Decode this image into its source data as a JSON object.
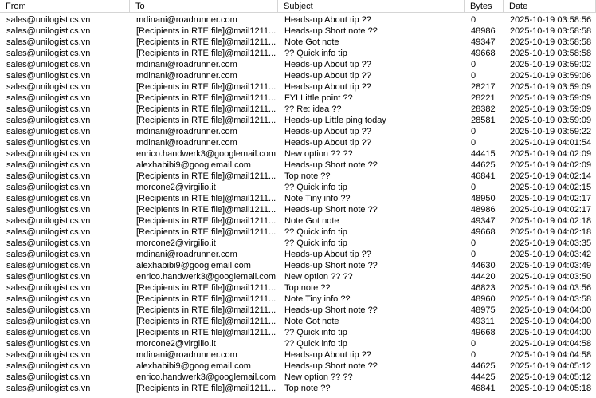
{
  "table": {
    "columns": [
      "From",
      "To",
      "Subject",
      "Bytes",
      "Date"
    ],
    "rows": [
      [
        "sales@unilogistics.vn",
        "mdinani@roadrunner.com",
        "Heads-up About tip ??",
        0,
        "2025-10-19 03:58:56"
      ],
      [
        "sales@unilogistics.vn",
        "[Recipients in RTE file]@mail1211...",
        "Heads-up Short note ??",
        48986,
        "2025-10-19 03:58:58"
      ],
      [
        "sales@unilogistics.vn",
        "[Recipients in RTE file]@mail1211...",
        "Note Got note",
        49347,
        "2025-10-19 03:58:58"
      ],
      [
        "sales@unilogistics.vn",
        "[Recipients in RTE file]@mail1211...",
        "?? Quick info tip",
        49668,
        "2025-10-19 03:58:58"
      ],
      [
        "sales@unilogistics.vn",
        "mdinani@roadrunner.com",
        "Heads-up About tip ??",
        0,
        "2025-10-19 03:59:02"
      ],
      [
        "sales@unilogistics.vn",
        "mdinani@roadrunner.com",
        "Heads-up About tip ??",
        0,
        "2025-10-19 03:59:06"
      ],
      [
        "sales@unilogistics.vn",
        "[Recipients in RTE file]@mail1211...",
        "Heads-up About tip ??",
        28217,
        "2025-10-19 03:59:09"
      ],
      [
        "sales@unilogistics.vn",
        "[Recipients in RTE file]@mail1211...",
        "FYI Little point ??",
        28221,
        "2025-10-19 03:59:09"
      ],
      [
        "sales@unilogistics.vn",
        "[Recipients in RTE file]@mail1211...",
        "?? Re: idea ??",
        28382,
        "2025-10-19 03:59:09"
      ],
      [
        "sales@unilogistics.vn",
        "[Recipients in RTE file]@mail1211...",
        "Heads-up Little ping today",
        28581,
        "2025-10-19 03:59:09"
      ],
      [
        "sales@unilogistics.vn",
        "mdinani@roadrunner.com",
        "Heads-up About tip ??",
        0,
        "2025-10-19 03:59:22"
      ],
      [
        "sales@unilogistics.vn",
        "mdinani@roadrunner.com",
        "Heads-up About tip ??",
        0,
        "2025-10-19 04:01:54"
      ],
      [
        "sales@unilogistics.vn",
        "enrico.handwerk3@googlemail.com",
        "New option ?? ??",
        44415,
        "2025-10-19 04:02:09"
      ],
      [
        "sales@unilogistics.vn",
        "alexhabibi9@googlemail.com",
        "Heads-up Short note ??",
        44625,
        "2025-10-19 04:02:09"
      ],
      [
        "sales@unilogistics.vn",
        "[Recipients in RTE file]@mail1211...",
        "Top note ??",
        46841,
        "2025-10-19 04:02:14"
      ],
      [
        "sales@unilogistics.vn",
        "morcone2@virgilio.it",
        "?? Quick info tip",
        0,
        "2025-10-19 04:02:15"
      ],
      [
        "sales@unilogistics.vn",
        "[Recipients in RTE file]@mail1211...",
        "Note Tiny info ??",
        48950,
        "2025-10-19 04:02:17"
      ],
      [
        "sales@unilogistics.vn",
        "[Recipients in RTE file]@mail1211...",
        "Heads-up Short note ??",
        48986,
        "2025-10-19 04:02:17"
      ],
      [
        "sales@unilogistics.vn",
        "[Recipients in RTE file]@mail1211...",
        "Note Got note",
        49347,
        "2025-10-19 04:02:18"
      ],
      [
        "sales@unilogistics.vn",
        "[Recipients in RTE file]@mail1211...",
        "?? Quick info tip",
        49668,
        "2025-10-19 04:02:18"
      ],
      [
        "sales@unilogistics.vn",
        "morcone2@virgilio.it",
        "?? Quick info tip",
        0,
        "2025-10-19 04:03:35"
      ],
      [
        "sales@unilogistics.vn",
        "mdinani@roadrunner.com",
        "Heads-up About tip ??",
        0,
        "2025-10-19 04:03:42"
      ],
      [
        "sales@unilogistics.vn",
        "alexhabibi9@googlemail.com",
        "Heads-up Short note ??",
        44630,
        "2025-10-19 04:03:49"
      ],
      [
        "sales@unilogistics.vn",
        "enrico.handwerk3@googlemail.com",
        "New option ?? ??",
        44420,
        "2025-10-19 04:03:50"
      ],
      [
        "sales@unilogistics.vn",
        "[Recipients in RTE file]@mail1211...",
        "Top note ??",
        46823,
        "2025-10-19 04:03:56"
      ],
      [
        "sales@unilogistics.vn",
        "[Recipients in RTE file]@mail1211...",
        "Note Tiny info ??",
        48960,
        "2025-10-19 04:03:58"
      ],
      [
        "sales@unilogistics.vn",
        "[Recipients in RTE file]@mail1211...",
        "Heads-up Short note ??",
        48975,
        "2025-10-19 04:04:00"
      ],
      [
        "sales@unilogistics.vn",
        "[Recipients in RTE file]@mail1211...",
        "Note Got note",
        49311,
        "2025-10-19 04:04:00"
      ],
      [
        "sales@unilogistics.vn",
        "[Recipients in RTE file]@mail1211...",
        "?? Quick info tip",
        49668,
        "2025-10-19 04:04:00"
      ],
      [
        "sales@unilogistics.vn",
        "morcone2@virgilio.it",
        "?? Quick info tip",
        0,
        "2025-10-19 04:04:58"
      ],
      [
        "sales@unilogistics.vn",
        "mdinani@roadrunner.com",
        "Heads-up About tip ??",
        0,
        "2025-10-19 04:04:58"
      ],
      [
        "sales@unilogistics.vn",
        "alexhabibi9@googlemail.com",
        "Heads-up Short note ??",
        44625,
        "2025-10-19 04:05:12"
      ],
      [
        "sales@unilogistics.vn",
        "enrico.handwerk3@googlemail.com",
        "New option ?? ??",
        44425,
        "2025-10-19 04:05:12"
      ],
      [
        "sales@unilogistics.vn",
        "[Recipients in RTE file]@mail1211...",
        "Top note ??",
        46841,
        "2025-10-19 04:05:18"
      ]
    ]
  }
}
